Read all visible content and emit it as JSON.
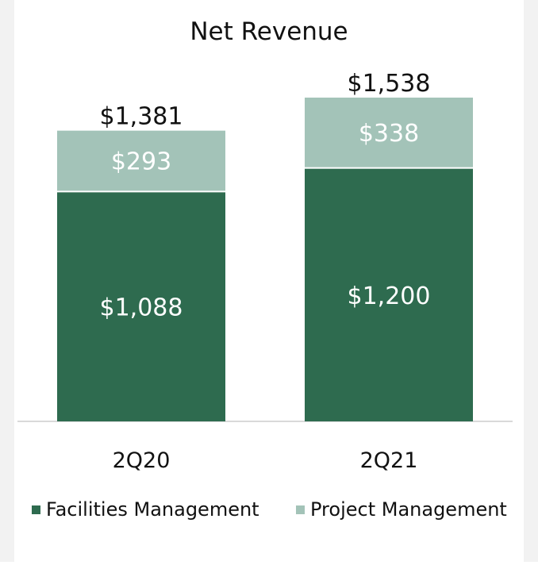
{
  "chart_data": {
    "type": "bar",
    "stacked": true,
    "title": "Net Revenue",
    "categories": [
      "2Q20",
      "2Q21"
    ],
    "series": [
      {
        "name": "Facilities Management",
        "values": [
          1088,
          1200
        ],
        "labels": [
          "$1,088",
          "$1,200"
        ],
        "color": "#2e6b4f",
        "label_color": "#ffffff"
      },
      {
        "name": "Project Management",
        "values": [
          293,
          338
        ],
        "labels": [
          "$293",
          "$338"
        ],
        "color": "#a3c3b8",
        "label_color": "#ffffff"
      }
    ],
    "totals": [
      1381,
      1538
    ],
    "total_labels": [
      "$1,381",
      "$1,538"
    ],
    "ylim": [
      0,
      1538
    ],
    "grid": false,
    "legend_position": "bottom"
  },
  "colors": {
    "axis": "#d9d9d9",
    "text": "#111111",
    "background": "#ffffff"
  }
}
